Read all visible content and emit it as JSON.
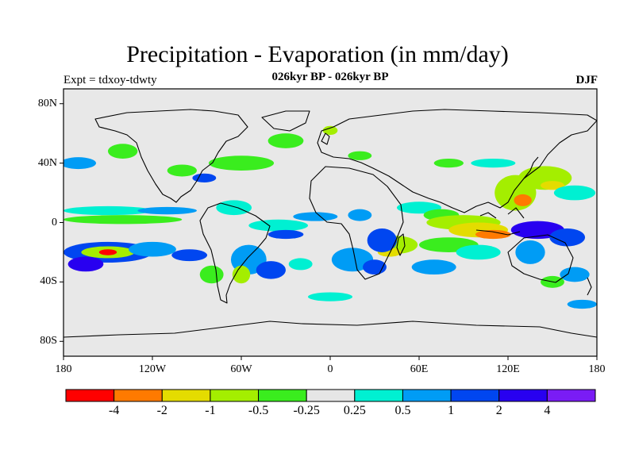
{
  "header": {
    "title": "Precipitation - Evaporation (in mm/day)",
    "expt_label": "Expt = tdxoy-tdwty",
    "period_label": "026kyr BP - 026kyr BP",
    "season_label": "DJF"
  },
  "map": {
    "background_color": "#e8e8e8",
    "coastline_color": "#000000",
    "lat_ticks": [
      "80N",
      "40N",
      "0",
      "40S",
      "80S"
    ],
    "lon_ticks": [
      "180",
      "120W",
      "60W",
      "0",
      "60E",
      "120E",
      "180"
    ]
  },
  "legend": {
    "colors": [
      "#ff0000",
      "#ff7a00",
      "#e4dc00",
      "#a4ee00",
      "#3aed1e",
      "#e6e6e6",
      "#00f0d2",
      "#009cf5",
      "#0046f0",
      "#2800f0",
      "#7a1cf5"
    ],
    "labels": [
      "-4",
      "-2",
      "-1",
      "-0.5",
      "-0.25",
      "0.25",
      "0.5",
      "1",
      "2",
      "4"
    ]
  },
  "blobs": [
    {
      "lon": -150,
      "lat": -20,
      "rx": 30,
      "ry": 7,
      "level": 8
    },
    {
      "lon": -150,
      "lat": -20,
      "rx": 18,
      "ry": 4,
      "level": 3
    },
    {
      "lon": -150,
      "lat": -20,
      "rx": 6,
      "ry": 2,
      "level": 0
    },
    {
      "lon": -165,
      "lat": -28,
      "rx": 12,
      "ry": 5,
      "level": 9
    },
    {
      "lon": -120,
      "lat": -18,
      "rx": 16,
      "ry": 5,
      "level": 7
    },
    {
      "lon": -95,
      "lat": -22,
      "rx": 12,
      "ry": 4,
      "level": 8
    },
    {
      "lon": -140,
      "lat": 2,
      "rx": 40,
      "ry": 3,
      "level": 4
    },
    {
      "lon": -150,
      "lat": 8,
      "rx": 30,
      "ry": 3,
      "level": 6
    },
    {
      "lon": -110,
      "lat": 8,
      "rx": 20,
      "ry": 2.5,
      "level": 7
    },
    {
      "lon": -65,
      "lat": 10,
      "rx": 12,
      "ry": 5,
      "level": 6
    },
    {
      "lon": -35,
      "lat": -2,
      "rx": 20,
      "ry": 4,
      "level": 6
    },
    {
      "lon": -10,
      "lat": 4,
      "rx": 15,
      "ry": 3,
      "level": 7
    },
    {
      "lon": -30,
      "lat": -8,
      "rx": 12,
      "ry": 3,
      "level": 8
    },
    {
      "lon": -55,
      "lat": -25,
      "rx": 12,
      "ry": 10,
      "level": 7
    },
    {
      "lon": -40,
      "lat": -32,
      "rx": 10,
      "ry": 6,
      "level": 8
    },
    {
      "lon": -20,
      "lat": -28,
      "rx": 8,
      "ry": 4,
      "level": 6
    },
    {
      "lon": -80,
      "lat": -35,
      "rx": 8,
      "ry": 6,
      "level": 4
    },
    {
      "lon": -60,
      "lat": -35,
      "rx": 6,
      "ry": 6,
      "level": 3
    },
    {
      "lon": -140,
      "lat": 48,
      "rx": 10,
      "ry": 5,
      "level": 4
    },
    {
      "lon": -170,
      "lat": 40,
      "rx": 12,
      "ry": 4,
      "level": 7
    },
    {
      "lon": -100,
      "lat": 35,
      "rx": 10,
      "ry": 4,
      "level": 4
    },
    {
      "lon": -60,
      "lat": 40,
      "rx": 22,
      "ry": 5,
      "level": 4
    },
    {
      "lon": -85,
      "lat": 30,
      "rx": 8,
      "ry": 3,
      "level": 8
    },
    {
      "lon": -30,
      "lat": 55,
      "rx": 12,
      "ry": 5,
      "level": 4
    },
    {
      "lon": 0,
      "lat": 62,
      "rx": 5,
      "ry": 3,
      "level": 3
    },
    {
      "lon": 20,
      "lat": 45,
      "rx": 8,
      "ry": 3,
      "level": 4
    },
    {
      "lon": 45,
      "lat": -15,
      "rx": 14,
      "ry": 6,
      "level": 3
    },
    {
      "lon": 40,
      "lat": -20,
      "rx": 8,
      "ry": 3,
      "level": 2
    },
    {
      "lon": 35,
      "lat": -12,
      "rx": 10,
      "ry": 8,
      "level": 8
    },
    {
      "lon": 15,
      "lat": -25,
      "rx": 14,
      "ry": 8,
      "level": 7
    },
    {
      "lon": 30,
      "lat": -30,
      "rx": 8,
      "ry": 5,
      "level": 8
    },
    {
      "lon": 20,
      "lat": 5,
      "rx": 8,
      "ry": 4,
      "level": 7
    },
    {
      "lon": 60,
      "lat": 10,
      "rx": 15,
      "ry": 4,
      "level": 6
    },
    {
      "lon": 75,
      "lat": 5,
      "rx": 12,
      "ry": 4,
      "level": 4
    },
    {
      "lon": 90,
      "lat": 0,
      "rx": 25,
      "ry": 5,
      "level": 3
    },
    {
      "lon": 100,
      "lat": -5,
      "rx": 20,
      "ry": 5,
      "level": 2
    },
    {
      "lon": 110,
      "lat": -8,
      "rx": 12,
      "ry": 3,
      "level": 1
    },
    {
      "lon": 80,
      "lat": -15,
      "rx": 20,
      "ry": 5,
      "level": 4
    },
    {
      "lon": 70,
      "lat": -30,
      "rx": 15,
      "ry": 5,
      "level": 7
    },
    {
      "lon": 100,
      "lat": -20,
      "rx": 15,
      "ry": 5,
      "level": 6
    },
    {
      "lon": 125,
      "lat": 20,
      "rx": 14,
      "ry": 12,
      "level": 3
    },
    {
      "lon": 130,
      "lat": 15,
      "rx": 6,
      "ry": 4,
      "level": 1
    },
    {
      "lon": 145,
      "lat": 30,
      "rx": 18,
      "ry": 8,
      "level": 3
    },
    {
      "lon": 150,
      "lat": 25,
      "rx": 8,
      "ry": 3,
      "level": 2
    },
    {
      "lon": 165,
      "lat": 20,
      "rx": 14,
      "ry": 5,
      "level": 6
    },
    {
      "lon": 140,
      "lat": -5,
      "rx": 18,
      "ry": 6,
      "level": 9
    },
    {
      "lon": 160,
      "lat": -10,
      "rx": 12,
      "ry": 6,
      "level": 8
    },
    {
      "lon": 135,
      "lat": -20,
      "rx": 10,
      "ry": 8,
      "level": 7
    },
    {
      "lon": 165,
      "lat": -35,
      "rx": 10,
      "ry": 5,
      "level": 7
    },
    {
      "lon": 150,
      "lat": -40,
      "rx": 8,
      "ry": 4,
      "level": 4
    },
    {
      "lon": 110,
      "lat": 40,
      "rx": 15,
      "ry": 3,
      "level": 6
    },
    {
      "lon": 80,
      "lat": 40,
      "rx": 10,
      "ry": 3,
      "level": 4
    },
    {
      "lon": 0,
      "lat": -50,
      "rx": 15,
      "ry": 3,
      "level": 6
    },
    {
      "lon": 170,
      "lat": -55,
      "rx": 10,
      "ry": 3,
      "level": 7
    }
  ]
}
